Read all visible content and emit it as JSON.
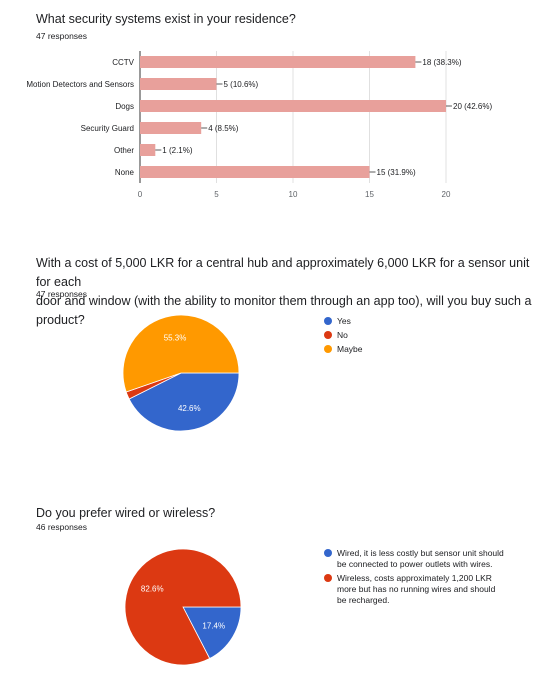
{
  "sections": [
    {
      "question": "What security systems exist in your residence?",
      "responses": "47 responses"
    },
    {
      "question": "With a cost of 5,000 LKR for a central hub and approximately 6,000 LKR for a sensor unit for each door and window (with the ability to monitor them through an app too), will you buy such a product?",
      "question_line1": "With a cost of 5,000 LKR for a central hub and approximately 6,000 LKR for a sensor unit for each",
      "question_line2": "door and window (with the ability to monitor them through an app too), will you buy such a product?",
      "responses": "47 responses"
    },
    {
      "question": "Do you prefer wired or wireless?",
      "responses": "46 responses"
    }
  ],
  "chart_data": [
    {
      "type": "bar",
      "orientation": "horizontal",
      "categories": [
        "CCTV",
        "Motion Detectors and Sensors",
        "Dogs",
        "Security Guard",
        "Other",
        "None"
      ],
      "values": [
        18,
        5,
        20,
        4,
        1,
        15
      ],
      "data_labels": [
        "18 (38.3%)",
        "5 (10.6%)",
        "20 (42.6%)",
        "4 (8.5%)",
        "1 (2.1%)",
        "15 (31.9%)"
      ],
      "xlim": [
        0,
        20
      ],
      "xticks": [
        "0",
        "5",
        "10",
        "15",
        "20"
      ],
      "color": "#e8a09b",
      "grid": true
    },
    {
      "type": "pie",
      "labels": [
        "Yes",
        "No",
        "Maybe"
      ],
      "values": [
        42.6,
        2.1,
        55.3
      ],
      "slice_labels": [
        "42.6%",
        "",
        "55.3%"
      ],
      "colors": [
        "#3366cc",
        "#dc3912",
        "#ff9900"
      ],
      "legend": "right"
    },
    {
      "type": "pie",
      "labels": [
        "Wired, it is less costly but sensor unit should be connected to power outlets with wires.",
        "Wireless, costs approximately 1,200 LKR more but has no running wires and should be recharged."
      ],
      "values": [
        17.4,
        82.6
      ],
      "slice_labels": [
        "17.4%",
        "82.6%"
      ],
      "colors": [
        "#3366cc",
        "#dc3912"
      ],
      "legend": "right"
    }
  ]
}
